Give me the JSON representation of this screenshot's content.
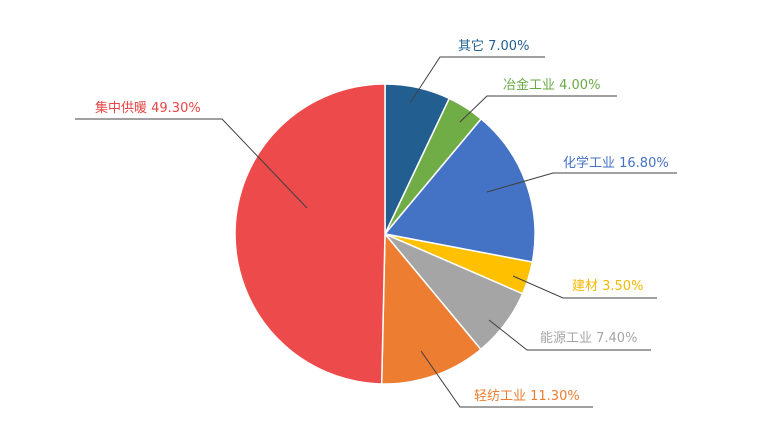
{
  "chart_data": {
    "type": "pie",
    "start": "top",
    "direction": "clockwise",
    "slices": [
      {
        "label": "其它",
        "value": 7.0,
        "text": "其它 7.00%",
        "color": "#235e91"
      },
      {
        "label": "冶金工业",
        "value": 4.0,
        "text": "冶金工业 4.00%",
        "color": "#70ad47"
      },
      {
        "label": "化学工业",
        "value": 16.8,
        "text": "化学工业 16.80%",
        "color": "#4472c4"
      },
      {
        "label": "建材",
        "value": 3.5,
        "text": "建材 3.50%",
        "color": "#ffc000"
      },
      {
        "label": "能源工业",
        "value": 7.4,
        "text": "能源工业 7.40%",
        "color": "#a5a5a5"
      },
      {
        "label": "轻纺工业",
        "value": 11.3,
        "text": "轻纺工业 11.30%",
        "color": "#ed7d31"
      },
      {
        "label": "集中供暖",
        "value": 49.3,
        "text": "集中供暖 49.30%",
        "color": "#ec4a4b"
      }
    ],
    "label_colors": [
      "#235e91",
      "#6aaa44",
      "#4472c4",
      "#f5b800",
      "#a5a5a5",
      "#ed7d31",
      "#e84545"
    ],
    "leader_line_color": "#404040"
  }
}
